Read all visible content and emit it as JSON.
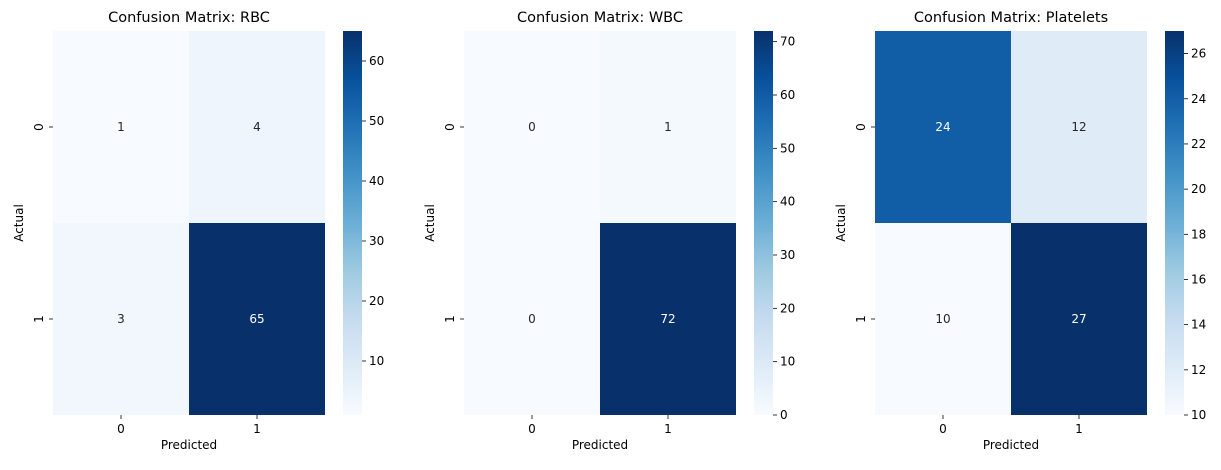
{
  "chart_data": [
    {
      "type": "heatmap",
      "title": "Confusion Matrix: RBC",
      "xlabel": "Predicted",
      "ylabel": "Actual",
      "x_categories": [
        "0",
        "1"
      ],
      "y_categories": [
        "0",
        "1"
      ],
      "values": [
        [
          1,
          4
        ],
        [
          3,
          65
        ]
      ],
      "colormap": "Blues",
      "colorbar": {
        "min": 1,
        "max": 65,
        "ticks": [
          10,
          20,
          30,
          40,
          50,
          60
        ]
      }
    },
    {
      "type": "heatmap",
      "title": "Confusion Matrix: WBC",
      "xlabel": "Predicted",
      "ylabel": "Actual",
      "x_categories": [
        "0",
        "1"
      ],
      "y_categories": [
        "0",
        "1"
      ],
      "values": [
        [
          0,
          1
        ],
        [
          0,
          72
        ]
      ],
      "colormap": "Blues",
      "colorbar": {
        "min": 0,
        "max": 72,
        "ticks": [
          0,
          10,
          20,
          30,
          40,
          50,
          60,
          70
        ]
      }
    },
    {
      "type": "heatmap",
      "title": "Confusion Matrix: Platelets",
      "xlabel": "Predicted",
      "ylabel": "Actual",
      "x_categories": [
        "0",
        "1"
      ],
      "y_categories": [
        "0",
        "1"
      ],
      "values": [
        [
          24,
          12
        ],
        [
          10,
          27
        ]
      ],
      "colormap": "Blues",
      "colorbar": {
        "min": 10,
        "max": 27,
        "ticks": [
          10,
          12,
          14,
          16,
          18,
          20,
          22,
          24,
          26
        ]
      }
    }
  ]
}
